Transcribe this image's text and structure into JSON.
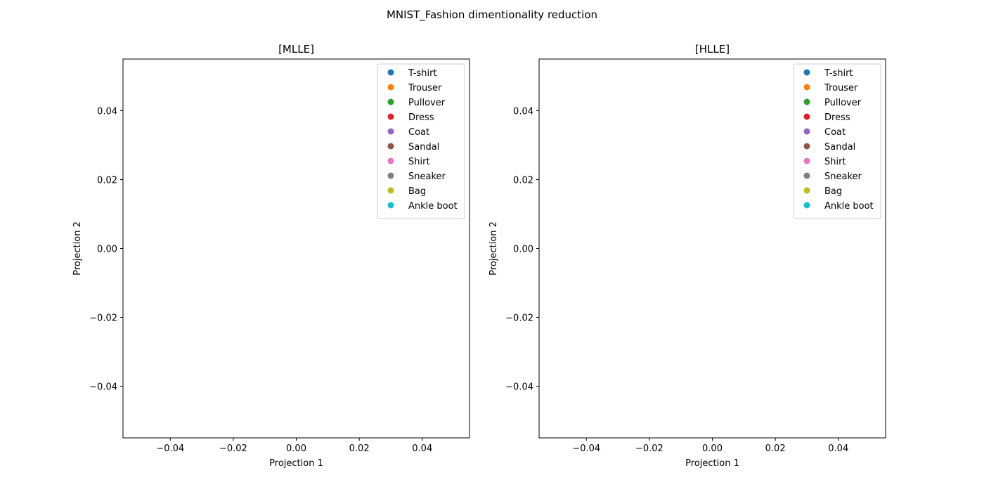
{
  "figure": {
    "title": "MNIST_Fashion dimentionality reduction"
  },
  "chart_data": [
    {
      "type": "scatter",
      "title": "[MLLE]",
      "xlabel": "Projection 1",
      "ylabel": "Projection 2",
      "xlim": [
        -0.055,
        0.055
      ],
      "ylim": [
        -0.055,
        0.055
      ],
      "xticks": [
        -0.04,
        -0.02,
        0.0,
        0.02,
        0.04
      ],
      "yticks": [
        -0.04,
        -0.02,
        0.0,
        0.02,
        0.04
      ],
      "xtick_labels": [
        "−0.04",
        "−0.02",
        "0.00",
        "0.02",
        "0.04"
      ],
      "ytick_labels": [
        "−0.04",
        "−0.02",
        "0.00",
        "0.02",
        "0.04"
      ],
      "grid": false,
      "legend_position": "top-right",
      "series": [
        {
          "name": "T-shirt",
          "color": "#1f77b4",
          "points": []
        },
        {
          "name": "Trouser",
          "color": "#ff7f0e",
          "points": []
        },
        {
          "name": "Pullover",
          "color": "#2ca02c",
          "points": []
        },
        {
          "name": "Dress",
          "color": "#d62728",
          "points": []
        },
        {
          "name": "Coat",
          "color": "#9467bd",
          "points": []
        },
        {
          "name": "Sandal",
          "color": "#8c564b",
          "points": []
        },
        {
          "name": "Shirt",
          "color": "#e377c2",
          "points": []
        },
        {
          "name": "Sneaker",
          "color": "#7f7f7f",
          "points": []
        },
        {
          "name": "Bag",
          "color": "#bcbd22",
          "points": []
        },
        {
          "name": "Ankle boot",
          "color": "#17becf",
          "points": []
        }
      ]
    },
    {
      "type": "scatter",
      "title": "[HLLE]",
      "xlabel": "Projection 1",
      "ylabel": "Projection 2",
      "xlim": [
        -0.055,
        0.055
      ],
      "ylim": [
        -0.055,
        0.055
      ],
      "xticks": [
        -0.04,
        -0.02,
        0.0,
        0.02,
        0.04
      ],
      "yticks": [
        -0.04,
        -0.02,
        0.0,
        0.02,
        0.04
      ],
      "xtick_labels": [
        "−0.04",
        "−0.02",
        "0.00",
        "0.02",
        "0.04"
      ],
      "ytick_labels": [
        "−0.04",
        "−0.02",
        "0.00",
        "0.02",
        "0.04"
      ],
      "grid": false,
      "legend_position": "top-right",
      "series": [
        {
          "name": "T-shirt",
          "color": "#1f77b4",
          "points": []
        },
        {
          "name": "Trouser",
          "color": "#ff7f0e",
          "points": []
        },
        {
          "name": "Pullover",
          "color": "#2ca02c",
          "points": []
        },
        {
          "name": "Dress",
          "color": "#d62728",
          "points": []
        },
        {
          "name": "Coat",
          "color": "#9467bd",
          "points": []
        },
        {
          "name": "Sandal",
          "color": "#8c564b",
          "points": []
        },
        {
          "name": "Shirt",
          "color": "#e377c2",
          "points": []
        },
        {
          "name": "Sneaker",
          "color": "#7f7f7f",
          "points": []
        },
        {
          "name": "Bag",
          "color": "#bcbd22",
          "points": []
        },
        {
          "name": "Ankle boot",
          "color": "#17becf",
          "points": []
        }
      ]
    }
  ]
}
